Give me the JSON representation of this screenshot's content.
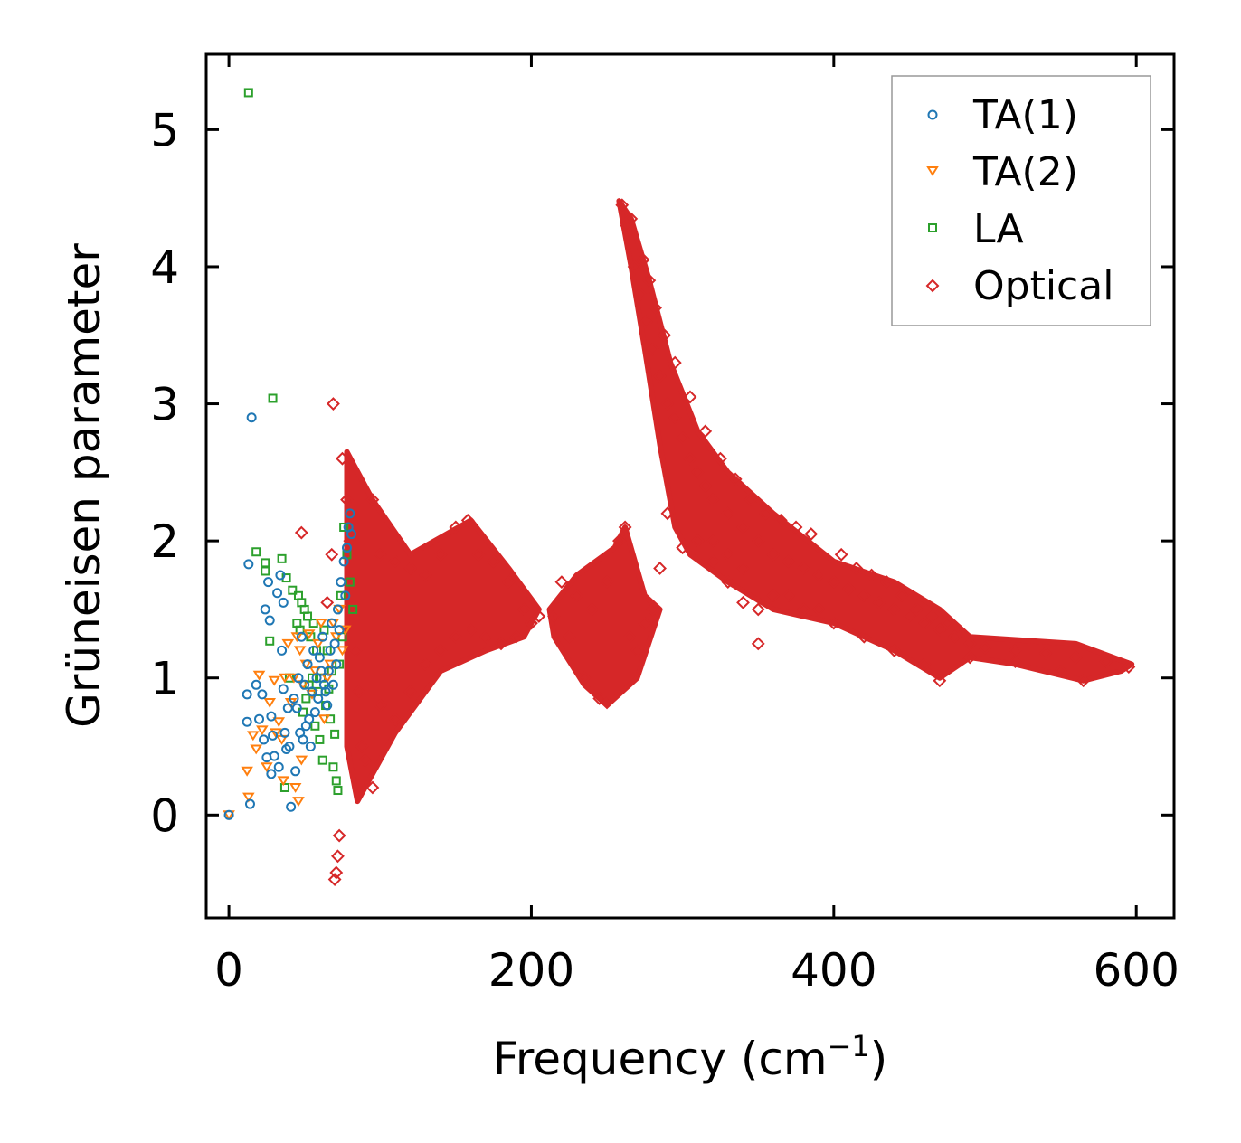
{
  "chart_data": {
    "type": "scatter",
    "title": "",
    "xlabel": "Frequency (cm",
    "xlabel_sup": "−1",
    "xlabel_close": ")",
    "ylabel": "Grüneisen parameter",
    "xlim": [
      -15,
      625
    ],
    "ylim": [
      -0.75,
      5.55
    ],
    "xticks": [
      0,
      200,
      400,
      600
    ],
    "yticks": [
      0,
      1,
      2,
      3,
      4,
      5
    ],
    "xtick_labels": [
      "0",
      "200",
      "400",
      "600"
    ],
    "ytick_labels": [
      "0",
      "1",
      "2",
      "3",
      "4",
      "5"
    ],
    "grid": false,
    "legend_position": "top-right",
    "series": [
      {
        "name": "TA(1)",
        "marker": "circle",
        "color": "#1f77b4",
        "points": [
          [
            0,
            0
          ],
          [
            15,
            2.9
          ],
          [
            13,
            1.83
          ],
          [
            12,
            0.88
          ],
          [
            12,
            0.68
          ],
          [
            14,
            0.08
          ],
          [
            18,
            0.95
          ],
          [
            22,
            0.88
          ],
          [
            24,
            1.5
          ],
          [
            26,
            1.7
          ],
          [
            27,
            1.42
          ],
          [
            28,
            0.72
          ],
          [
            25,
            0.42
          ],
          [
            28,
            0.3
          ],
          [
            30,
            0.43
          ],
          [
            32,
            1.62
          ],
          [
            34,
            1.75
          ],
          [
            36,
            1.55
          ],
          [
            35,
            1.2
          ],
          [
            37,
            0.6
          ],
          [
            38,
            0.48
          ],
          [
            40,
            0.5
          ],
          [
            41,
            0.06
          ],
          [
            44,
            0.32
          ],
          [
            45,
            0.78
          ],
          [
            46,
            1.0
          ],
          [
            48,
            1.3
          ],
          [
            50,
            0.95
          ],
          [
            52,
            1.1
          ],
          [
            54,
            0.5
          ],
          [
            56,
            1.2
          ],
          [
            58,
            1.0
          ],
          [
            60,
            1.15
          ],
          [
            62,
            1.3
          ],
          [
            64,
            0.9
          ],
          [
            66,
            1.05
          ],
          [
            68,
            1.4
          ],
          [
            70,
            1.25
          ],
          [
            72,
            1.5
          ],
          [
            74,
            1.7
          ],
          [
            76,
            1.85
          ],
          [
            78,
            1.95
          ],
          [
            79,
            2.1
          ],
          [
            80,
            2.2
          ],
          [
            81,
            2.05
          ],
          [
            77,
            1.6
          ],
          [
            73,
            1.35
          ],
          [
            71,
            1.1
          ],
          [
            69,
            0.95
          ],
          [
            67,
            1.2
          ],
          [
            65,
            0.8
          ],
          [
            63,
            0.95
          ],
          [
            61,
            1.05
          ],
          [
            59,
            0.85
          ],
          [
            57,
            0.75
          ],
          [
            55,
            0.9
          ],
          [
            53,
            0.7
          ],
          [
            51,
            0.65
          ],
          [
            49,
            0.55
          ],
          [
            47,
            0.6
          ],
          [
            43,
            0.85
          ],
          [
            39,
            0.78
          ],
          [
            36,
            0.92
          ],
          [
            33,
            0.35
          ],
          [
            29,
            0.58
          ],
          [
            23,
            0.55
          ],
          [
            20,
            0.7
          ]
        ]
      },
      {
        "name": "TA(2)",
        "marker": "triangle-down",
        "color": "#ff7f0e",
        "points": [
          [
            0,
            0
          ],
          [
            12,
            0.32
          ],
          [
            13,
            0.13
          ],
          [
            16,
            0.58
          ],
          [
            18,
            0.48
          ],
          [
            20,
            1.02
          ],
          [
            22,
            0.62
          ],
          [
            25,
            0.35
          ],
          [
            27,
            0.82
          ],
          [
            30,
            0.98
          ],
          [
            33,
            0.68
          ],
          [
            35,
            0.55
          ],
          [
            37,
            1.0
          ],
          [
            39,
            1.25
          ],
          [
            41,
            0.82
          ],
          [
            43,
            1.0
          ],
          [
            45,
            1.3
          ],
          [
            47,
            1.2
          ],
          [
            49,
            0.95
          ],
          [
            51,
            1.1
          ],
          [
            53,
            1.32
          ],
          [
            55,
            0.88
          ],
          [
            57,
            1.05
          ],
          [
            59,
            1.25
          ],
          [
            61,
            1.4
          ],
          [
            63,
            0.7
          ],
          [
            65,
            1.0
          ],
          [
            67,
            1.1
          ],
          [
            69,
            1.4
          ],
          [
            71,
            1.3
          ],
          [
            73,
            1.5
          ],
          [
            75,
            1.2
          ],
          [
            77,
            1.35
          ],
          [
            44,
            0.2
          ],
          [
            46,
            0.1
          ],
          [
            48,
            0.4
          ],
          [
            36,
            0.25
          ],
          [
            31,
            0.6
          ]
        ]
      },
      {
        "name": "LA",
        "marker": "square",
        "color": "#2ca02c",
        "points": [
          [
            13,
            5.27
          ],
          [
            29,
            3.04
          ],
          [
            18,
            1.92
          ],
          [
            24,
            1.84
          ],
          [
            24,
            1.78
          ],
          [
            27,
            1.27
          ],
          [
            35,
            1.87
          ],
          [
            38,
            1.73
          ],
          [
            42,
            1.64
          ],
          [
            46,
            1.6
          ],
          [
            48,
            1.55
          ],
          [
            50,
            1.5
          ],
          [
            52,
            1.45
          ],
          [
            54,
            1.3
          ],
          [
            56,
            1.4
          ],
          [
            58,
            1.2
          ],
          [
            60,
            0.55
          ],
          [
            62,
            0.4
          ],
          [
            64,
            0.8
          ],
          [
            66,
            0.92
          ],
          [
            68,
            1.05
          ],
          [
            70,
            0.59
          ],
          [
            72,
            0.18
          ],
          [
            74,
            1.6
          ],
          [
            76,
            2.1
          ],
          [
            78,
            1.9
          ],
          [
            80,
            1.7
          ],
          [
            82,
            1.5
          ],
          [
            75,
            1.3
          ],
          [
            73,
            1.1
          ],
          [
            71,
            0.25
          ],
          [
            69,
            0.35
          ],
          [
            67,
            0.7
          ],
          [
            65,
            1.2
          ],
          [
            63,
            1.35
          ],
          [
            61,
            1.0
          ],
          [
            59,
            0.9
          ],
          [
            57,
            0.65
          ],
          [
            55,
            1.0
          ],
          [
            53,
            0.95
          ],
          [
            51,
            0.85
          ],
          [
            49,
            0.75
          ],
          [
            47,
            1.35
          ],
          [
            45,
            1.4
          ],
          [
            40,
            1.0
          ],
          [
            37,
            0.2
          ]
        ]
      },
      {
        "name": "Optical",
        "marker": "diamond",
        "color": "#d62728",
        "points": [
          [
            69,
            3.0
          ],
          [
            48,
            2.06
          ],
          [
            70,
            -0.47
          ],
          [
            72,
            -0.3
          ],
          [
            71,
            -0.42
          ],
          [
            73,
            -0.15
          ],
          [
            65,
            1.55
          ],
          [
            68,
            1.9
          ],
          [
            75,
            2.6
          ],
          [
            78,
            2.3
          ],
          [
            80,
            2.0
          ],
          [
            82,
            1.7
          ],
          [
            84,
            1.2
          ],
          [
            86,
            0.9
          ],
          [
            88,
            0.5
          ],
          [
            90,
            0.4
          ],
          [
            95,
            2.3
          ],
          [
            100,
            1.9
          ],
          [
            110,
            1.85
          ],
          [
            120,
            1.8
          ],
          [
            130,
            1.75
          ],
          [
            140,
            1.9
          ],
          [
            150,
            2.1
          ],
          [
            158,
            2.15
          ],
          [
            165,
            1.9
          ],
          [
            175,
            1.85
          ],
          [
            185,
            1.7
          ],
          [
            195,
            1.5
          ],
          [
            205,
            1.45
          ],
          [
            95,
            0.2
          ],
          [
            100,
            0.8
          ],
          [
            110,
            0.7
          ],
          [
            120,
            0.9
          ],
          [
            130,
            1.1
          ],
          [
            140,
            1.2
          ],
          [
            150,
            1.3
          ],
          [
            160,
            1.35
          ],
          [
            170,
            1.3
          ],
          [
            180,
            1.25
          ],
          [
            190,
            1.3
          ],
          [
            200,
            1.4
          ],
          [
            215,
            1.45
          ],
          [
            225,
            1.3
          ],
          [
            235,
            1.0
          ],
          [
            245,
            0.85
          ],
          [
            250,
            0.82
          ],
          [
            220,
            1.7
          ],
          [
            230,
            1.6
          ],
          [
            240,
            1.5
          ],
          [
            250,
            1.7
          ],
          [
            258,
            2.0
          ],
          [
            262,
            2.1
          ],
          [
            265,
            1.3
          ],
          [
            270,
            1.2
          ],
          [
            275,
            1.4
          ],
          [
            280,
            1.5
          ],
          [
            285,
            1.8
          ],
          [
            290,
            2.2
          ],
          [
            260,
            4.45
          ],
          [
            263,
            4.3
          ],
          [
            268,
            4.0
          ],
          [
            272,
            3.8
          ],
          [
            276,
            3.6
          ],
          [
            280,
            3.4
          ],
          [
            285,
            3.2
          ],
          [
            290,
            3.0
          ],
          [
            295,
            2.9
          ],
          [
            300,
            2.75
          ],
          [
            305,
            2.6
          ],
          [
            310,
            2.5
          ],
          [
            315,
            2.4
          ],
          [
            320,
            2.3
          ],
          [
            330,
            2.2
          ],
          [
            340,
            2.1
          ],
          [
            350,
            2.0
          ],
          [
            360,
            1.9
          ],
          [
            370,
            1.85
          ],
          [
            380,
            1.8
          ],
          [
            390,
            1.75
          ],
          [
            400,
            1.7
          ],
          [
            410,
            1.65
          ],
          [
            420,
            1.6
          ],
          [
            430,
            1.55
          ],
          [
            440,
            1.5
          ],
          [
            450,
            1.45
          ],
          [
            460,
            1.4
          ],
          [
            470,
            1.35
          ],
          [
            480,
            1.3
          ],
          [
            490,
            1.25
          ],
          [
            500,
            1.22
          ],
          [
            520,
            1.2
          ],
          [
            540,
            1.18
          ],
          [
            560,
            1.15
          ],
          [
            580,
            1.12
          ],
          [
            595,
            1.08
          ],
          [
            300,
            1.95
          ],
          [
            310,
            2.0
          ],
          [
            320,
            2.0
          ],
          [
            330,
            1.9
          ],
          [
            340,
            1.8
          ],
          [
            350,
            1.5
          ],
          [
            360,
            1.6
          ],
          [
            370,
            1.6
          ],
          [
            380,
            1.5
          ],
          [
            390,
            1.5
          ],
          [
            400,
            1.4
          ],
          [
            420,
            1.3
          ],
          [
            440,
            1.2
          ],
          [
            460,
            1.1
          ],
          [
            470,
            0.98
          ],
          [
            490,
            1.15
          ],
          [
            520,
            1.12
          ],
          [
            550,
            1.05
          ],
          [
            565,
            0.98
          ],
          [
            350,
            1.25
          ],
          [
            340,
            1.55
          ],
          [
            330,
            1.7
          ],
          [
            320,
            1.85
          ],
          [
            405,
            1.9
          ],
          [
            415,
            1.8
          ],
          [
            425,
            1.75
          ],
          [
            435,
            1.7
          ],
          [
            445,
            1.6
          ],
          [
            455,
            1.5
          ],
          [
            465,
            1.45
          ],
          [
            475,
            1.4
          ],
          [
            385,
            2.05
          ],
          [
            375,
            2.1
          ],
          [
            365,
            2.15
          ],
          [
            355,
            2.2
          ],
          [
            345,
            2.3
          ],
          [
            335,
            2.45
          ],
          [
            325,
            2.6
          ],
          [
            315,
            2.8
          ],
          [
            305,
            3.05
          ],
          [
            295,
            3.3
          ],
          [
            288,
            3.5
          ],
          [
            282,
            3.7
          ],
          [
            278,
            3.9
          ],
          [
            274,
            4.05
          ],
          [
            266,
            4.35
          ]
        ]
      }
    ]
  }
}
